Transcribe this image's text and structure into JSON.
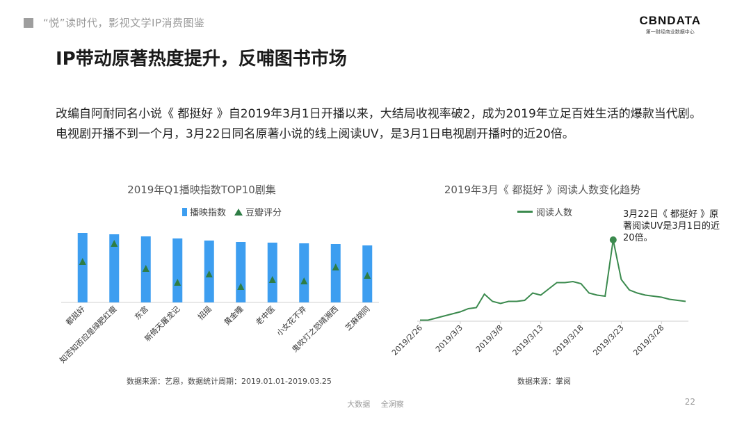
{
  "header": {
    "subtitle": "“悦”读时代，影视文学IP消费图鉴",
    "logo_text": "CBNDATA",
    "logo_tagline": "第一财经商业数据中心"
  },
  "title": "IP带动原著热度提升，反哺图书市场",
  "description": "改编自阿耐同名小说《 都挺好 》自2019年3月1日开播以来，大结局收视率破2，成为2019年立足百姓生活的爆款当代剧。电视剧开播不到一个月，3月22日同名原著小说的线上阅读UV，是3月1日电视剧开播时的近20倍。",
  "colors": {
    "bar": "#3d9ef0",
    "marker": "#2e7d45",
    "line": "#3b8a4e"
  },
  "chart_data": [
    {
      "type": "bar",
      "title": "2019年Q1播映指数TOP10剧集",
      "categories": [
        "都挺好",
        "知否知否应是绿肥红瘦",
        "东宫",
        "新倚天屠龙记",
        "招摇",
        "黄金瞳",
        "老中医",
        "小女花不弃",
        "鬼吹灯之怒晴湘西",
        "芝麻胡同"
      ],
      "series": [
        {
          "name": "播映指数",
          "values": [
            100,
            98,
            95,
            92,
            89,
            87,
            86,
            85,
            84,
            82
          ]
        },
        {
          "name": "豆瓣评分",
          "values": [
            7.9,
            9.2,
            7.4,
            6.4,
            7.0,
            6.1,
            6.6,
            6.5,
            7.5,
            6.9
          ]
        }
      ],
      "legend": "top",
      "source": "数据来源：艺恩，数据统计周期：2019.01.01-2019.03.25"
    },
    {
      "type": "line",
      "title": "2019年3月《 都挺好 》阅读人数变化趋势",
      "x_ticks": [
        "2019/2/26",
        "2019/3/3",
        "2019/3/8",
        "2019/3/13",
        "2019/3/18",
        "2019/3/23",
        "2019/3/28"
      ],
      "series": [
        {
          "name": "阅读人数",
          "x": [
            "2019/2/26",
            "2019/2/27",
            "2019/2/28",
            "2019/3/1",
            "2019/3/2",
            "2019/3/3",
            "2019/3/4",
            "2019/3/5",
            "2019/3/6",
            "2019/3/7",
            "2019/3/8",
            "2019/3/9",
            "2019/3/10",
            "2019/3/11",
            "2019/3/12",
            "2019/3/13",
            "2019/3/14",
            "2019/3/15",
            "2019/3/16",
            "2019/3/17",
            "2019/3/18",
            "2019/3/19",
            "2019/3/20",
            "2019/3/21",
            "2019/3/22",
            "2019/3/23",
            "2019/3/24",
            "2019/3/25",
            "2019/3/26",
            "2019/3/27",
            "2019/3/28",
            "2019/3/29",
            "2019/3/30",
            "2019/3/31"
          ],
          "values": [
            1,
            1,
            3,
            5,
            7,
            9,
            12,
            13,
            26,
            19,
            17,
            19,
            19,
            20,
            27,
            25,
            31,
            37,
            37,
            38,
            36,
            27,
            25,
            24,
            78,
            40,
            30,
            27,
            25,
            24,
            23,
            21,
            20,
            19
          ]
        }
      ],
      "annotation": "3月22日《 都挺好 》原著阅读UV是3月1日的近20倍。",
      "legend": "top",
      "source": "数据来源：掌阅"
    }
  ],
  "footer": {
    "left": "大数据",
    "right": "全洞察",
    "page": "22"
  }
}
